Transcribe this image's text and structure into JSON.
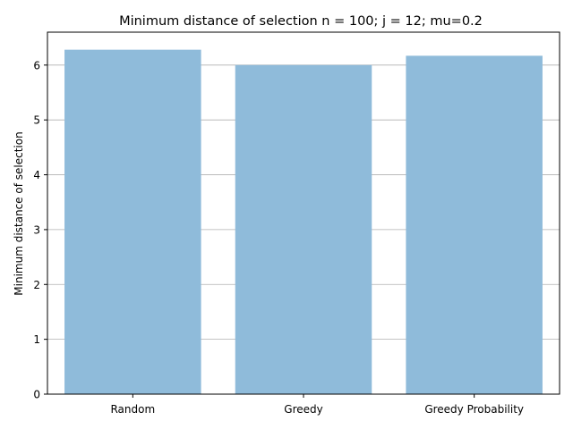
{
  "chart_data": {
    "type": "bar",
    "title": "Minimum distance of selection n = 100; j = 12; mu=0.2",
    "xlabel": "",
    "ylabel": "Minimum distance of selection",
    "categories": [
      "Random",
      "Greedy",
      "Greedy Probability"
    ],
    "values": [
      6.28,
      6.0,
      6.17
    ],
    "ylim": [
      0,
      6.6
    ],
    "yticks": [
      "0",
      "1",
      "2",
      "3",
      "4",
      "5",
      "6"
    ],
    "grid": "y",
    "colors": {
      "bar": "#8fbbda",
      "grid": "#b0b0b0",
      "axis": "#000000"
    }
  }
}
